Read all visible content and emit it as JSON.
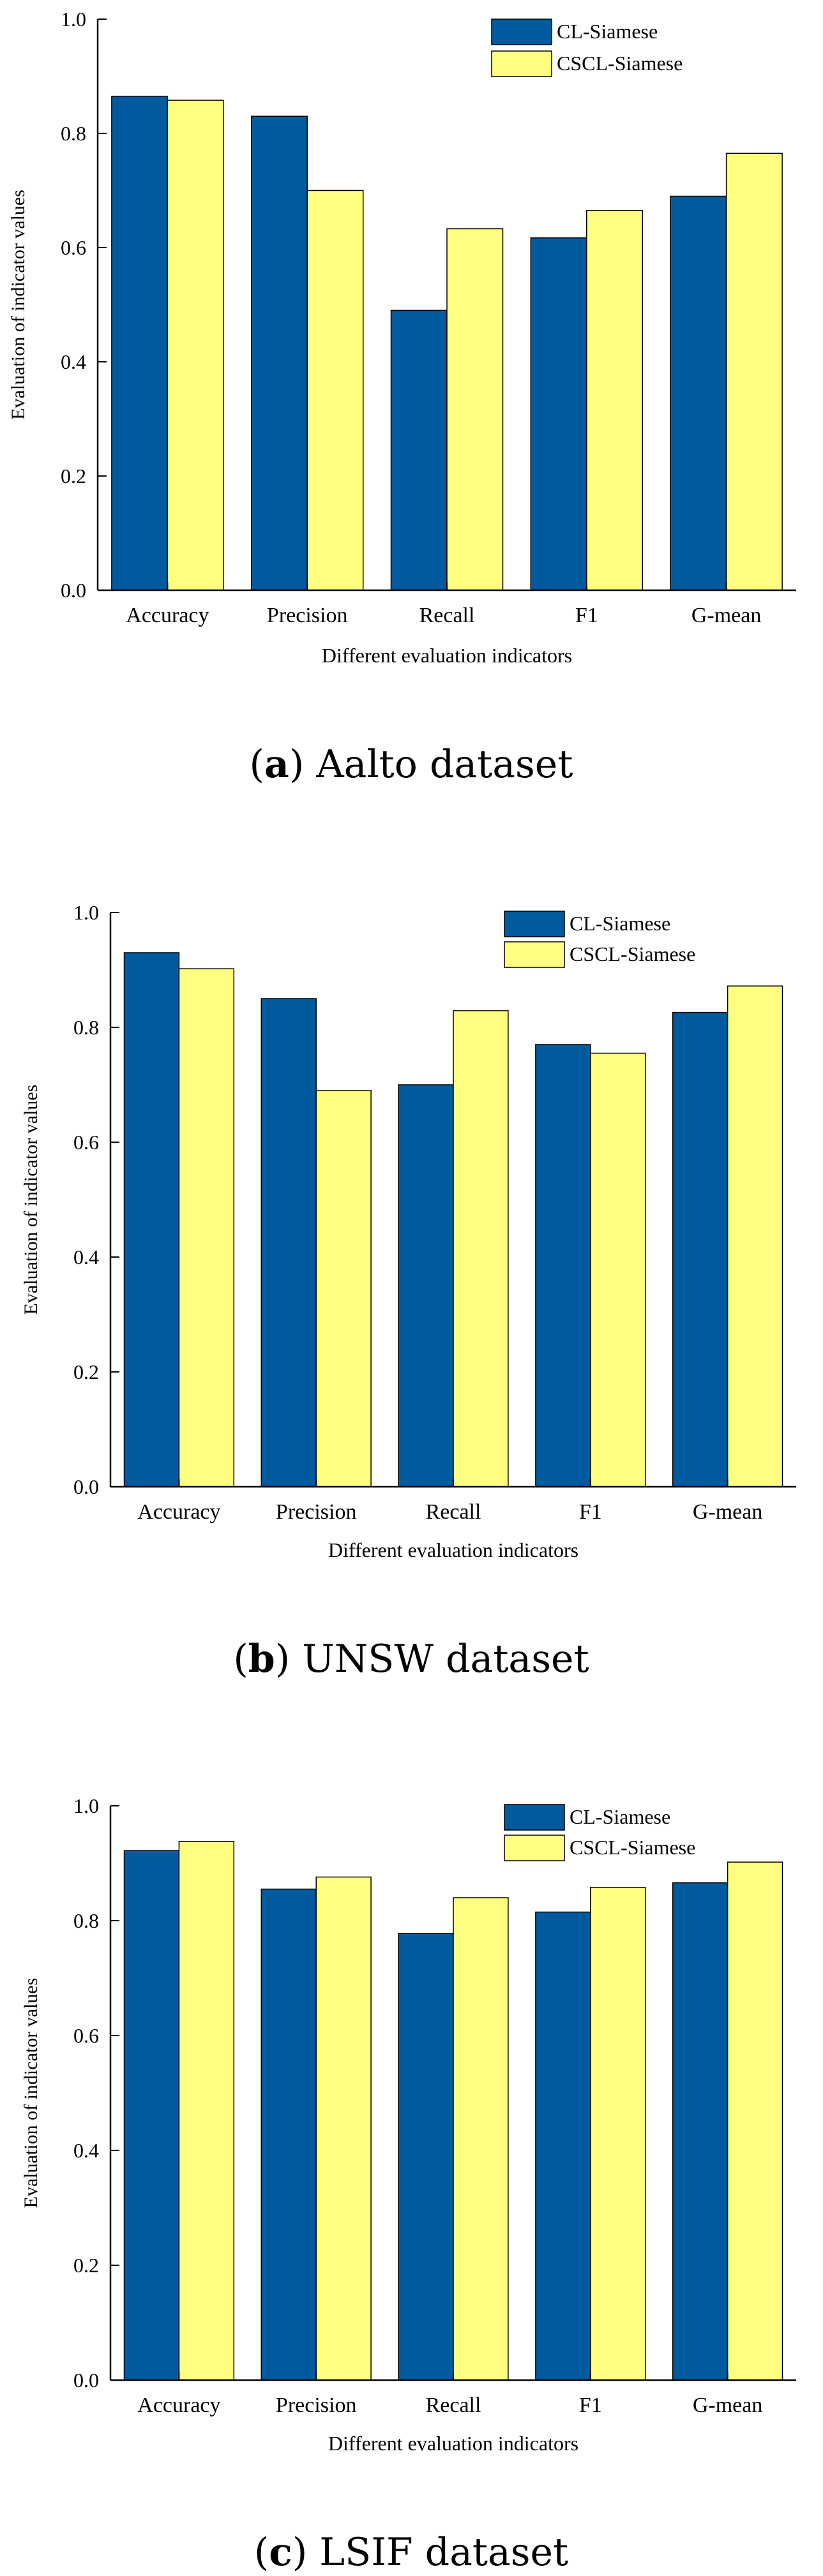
{
  "colors": {
    "series_a": "#005b9e",
    "series_b": "#ffff80",
    "stroke": "#000000"
  },
  "chart_data": [
    {
      "type": "bar",
      "caption_letter": "a",
      "caption_text": " Aalto dataset",
      "categories": [
        "Accuracy",
        "Precision",
        "Recall",
        "F1",
        "G-mean"
      ],
      "series": [
        {
          "name": "CL-Siamese",
          "values": [
            0.865,
            0.83,
            0.49,
            0.617,
            0.69
          ]
        },
        {
          "name": "CSCL-Siamese",
          "values": [
            0.858,
            0.7,
            0.633,
            0.665,
            0.765
          ]
        }
      ],
      "title": "",
      "xlabel": "Different evaluation indicators",
      "ylabel": "Evaluation of indicator values",
      "ylim": [
        0,
        1.0
      ],
      "yticks": [
        "0.0",
        "0.2",
        "0.4",
        "0.6",
        "0.8",
        "1.0"
      ],
      "legend": "top-right",
      "grid": false
    },
    {
      "type": "bar",
      "caption_letter": "b",
      "caption_text": " UNSW dataset",
      "categories": [
        "Accuracy",
        "Precision",
        "Recall",
        "F1",
        "G-mean"
      ],
      "series": [
        {
          "name": "CL-Siamese",
          "values": [
            0.93,
            0.85,
            0.7,
            0.77,
            0.826
          ]
        },
        {
          "name": "CSCL-Siamese",
          "values": [
            0.902,
            0.69,
            0.829,
            0.755,
            0.872
          ]
        }
      ],
      "title": "",
      "xlabel": "Different evaluation indicators",
      "ylabel": "Evaluation of indicator values",
      "ylim": [
        0,
        1.0
      ],
      "yticks": [
        "0.0",
        "0.2",
        "0.4",
        "0.6",
        "0.8",
        "1.0"
      ],
      "legend": "top-right",
      "grid": false
    },
    {
      "type": "bar",
      "caption_letter": "c",
      "caption_text": " LSIF dataset",
      "categories": [
        "Accuracy",
        "Precision",
        "Recall",
        "F1",
        "G-mean"
      ],
      "series": [
        {
          "name": "CL-Siamese",
          "values": [
            0.922,
            0.855,
            0.778,
            0.815,
            0.866
          ]
        },
        {
          "name": "CSCL-Siamese",
          "values": [
            0.938,
            0.876,
            0.84,
            0.858,
            0.902
          ]
        }
      ],
      "title": "",
      "xlabel": "Different evaluation indicators",
      "ylabel": "Evaluation of indicator values",
      "ylim": [
        0,
        1.0
      ],
      "yticks": [
        "0.0",
        "0.2",
        "0.4",
        "0.6",
        "0.8",
        "1.0"
      ],
      "legend": "top-right",
      "grid": false
    }
  ]
}
